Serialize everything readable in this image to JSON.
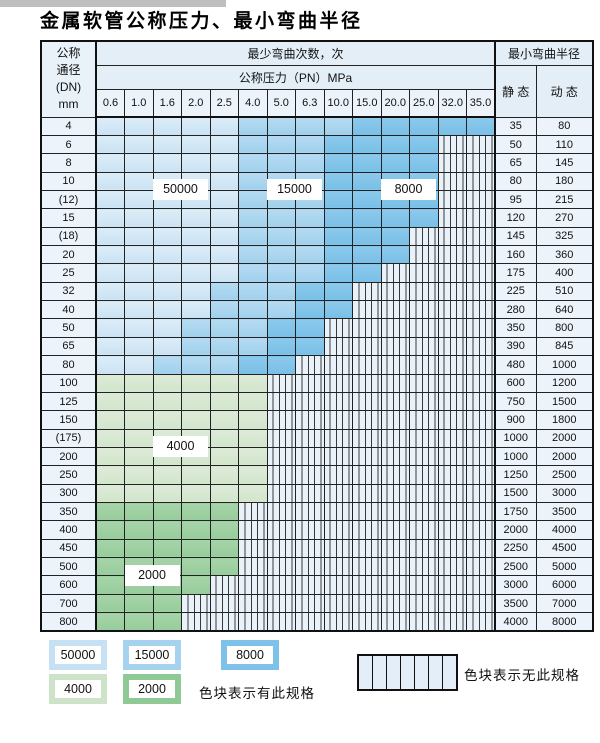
{
  "page": {
    "title": "金属软管公称压力、最小弯曲半径"
  },
  "table": {
    "corner": {
      "lines": [
        "公称",
        "通径",
        "(DN)",
        "mm"
      ]
    },
    "bend_cycles_header": "最少弯曲次数，次",
    "pressure_header": "公称压力（PN）MPa",
    "bend_radius_header": "最小弯曲半径",
    "static_header": "静 态",
    "dynamic_header": "动 态",
    "pressure_columns": [
      "0.6",
      "1.0",
      "1.6",
      "2.0",
      "2.5",
      "4.0",
      "5.0",
      "6.3",
      "10.0",
      "15.0",
      "20.0",
      "25.0",
      "32.0",
      "35.0"
    ],
    "rows": [
      {
        "dn": "4",
        "static": "35",
        "dynamic": "80",
        "colored_cols": 14,
        "shade": "blue",
        "light_end": 4,
        "med_end": 8
      },
      {
        "dn": "6",
        "static": "50",
        "dynamic": "110",
        "colored_cols": 12,
        "shade": "blue",
        "light_end": 4,
        "med_end": 7
      },
      {
        "dn": "8",
        "static": "65",
        "dynamic": "145",
        "colored_cols": 12,
        "shade": "blue",
        "light_end": 4,
        "med_end": 7
      },
      {
        "dn": "10",
        "static": "80",
        "dynamic": "180",
        "colored_cols": 12,
        "shade": "blue",
        "light_end": 4,
        "med_end": 7
      },
      {
        "dn": "(12)",
        "static": "95",
        "dynamic": "215",
        "colored_cols": 12,
        "shade": "blue",
        "light_end": 4,
        "med_end": 7
      },
      {
        "dn": "15",
        "static": "120",
        "dynamic": "270",
        "colored_cols": 12,
        "shade": "blue",
        "light_end": 4,
        "med_end": 7
      },
      {
        "dn": "(18)",
        "static": "145",
        "dynamic": "325",
        "colored_cols": 11,
        "shade": "blue",
        "light_end": 4,
        "med_end": 7
      },
      {
        "dn": "20",
        "static": "160",
        "dynamic": "360",
        "colored_cols": 11,
        "shade": "blue",
        "light_end": 4,
        "med_end": 7
      },
      {
        "dn": "25",
        "static": "175",
        "dynamic": "400",
        "colored_cols": 10,
        "shade": "blue",
        "light_end": 4,
        "med_end": 7
      },
      {
        "dn": "32",
        "static": "225",
        "dynamic": "510",
        "colored_cols": 9,
        "shade": "blue",
        "light_end": 3,
        "med_end": 6
      },
      {
        "dn": "40",
        "static": "280",
        "dynamic": "640",
        "colored_cols": 9,
        "shade": "blue",
        "light_end": 3,
        "med_end": 6
      },
      {
        "dn": "50",
        "static": "350",
        "dynamic": "800",
        "colored_cols": 8,
        "shade": "blue",
        "light_end": 2,
        "med_end": 5
      },
      {
        "dn": "65",
        "static": "390",
        "dynamic": "845",
        "colored_cols": 8,
        "shade": "blue",
        "light_end": 2,
        "med_end": 5
      },
      {
        "dn": "80",
        "static": "480",
        "dynamic": "1000",
        "colored_cols": 7,
        "shade": "blue",
        "light_end": 1,
        "med_end": 4
      },
      {
        "dn": "100",
        "static": "600",
        "dynamic": "1200",
        "colored_cols": 6,
        "shade": "green-4000"
      },
      {
        "dn": "125",
        "static": "750",
        "dynamic": "1500",
        "colored_cols": 6,
        "shade": "green-4000"
      },
      {
        "dn": "150",
        "static": "900",
        "dynamic": "1800",
        "colored_cols": 6,
        "shade": "green-4000"
      },
      {
        "dn": "(175)",
        "static": "1000",
        "dynamic": "2000",
        "colored_cols": 6,
        "shade": "green-4000"
      },
      {
        "dn": "200",
        "static": "1000",
        "dynamic": "2000",
        "colored_cols": 6,
        "shade": "green-4000"
      },
      {
        "dn": "250",
        "static": "1250",
        "dynamic": "2500",
        "colored_cols": 6,
        "shade": "green-4000"
      },
      {
        "dn": "300",
        "static": "1500",
        "dynamic": "3000",
        "colored_cols": 6,
        "shade": "green-4000"
      },
      {
        "dn": "350",
        "static": "1750",
        "dynamic": "3500",
        "colored_cols": 5,
        "shade": "green-2000"
      },
      {
        "dn": "400",
        "static": "2000",
        "dynamic": "4000",
        "colored_cols": 5,
        "shade": "green-2000"
      },
      {
        "dn": "450",
        "static": "2250",
        "dynamic": "4500",
        "colored_cols": 5,
        "shade": "green-2000"
      },
      {
        "dn": "500",
        "static": "2500",
        "dynamic": "5000",
        "colored_cols": 5,
        "shade": "green-2000"
      },
      {
        "dn": "600",
        "static": "3000",
        "dynamic": "6000",
        "colored_cols": 4,
        "shade": "green-2000"
      },
      {
        "dn": "700",
        "static": "3500",
        "dynamic": "7000",
        "colored_cols": 3,
        "shade": "green-2000"
      },
      {
        "dn": "800",
        "static": "4000",
        "dynamic": "8000",
        "colored_cols": 3,
        "shade": "green-2000"
      }
    ]
  },
  "overlays": [
    {
      "text": "50000",
      "col_start": 2,
      "col_end": 3,
      "row_boundary": 4
    },
    {
      "text": "15000",
      "col_start": 6,
      "col_end": 7,
      "row_boundary": 4
    },
    {
      "text": "8000",
      "col_start": 10,
      "col_end": 11,
      "row_boundary": 4
    },
    {
      "text": "4000",
      "col_start": 2,
      "col_end": 3,
      "row_boundary": 18
    },
    {
      "text": "2000",
      "col_start": 1,
      "col_end": 2,
      "row_boundary": 25
    }
  ],
  "legend": {
    "swatches": [
      {
        "label": "50000",
        "color": "#c7e1f4",
        "meaning": "blue-lightest"
      },
      {
        "label": "15000",
        "color": "#a5d2ee",
        "meaning": "blue-medium"
      },
      {
        "label": "8000",
        "color": "#7fc2e9",
        "meaning": "blue-dark"
      },
      {
        "label": "4000",
        "color": "#cde4c9",
        "meaning": "green-light"
      },
      {
        "label": "2000",
        "color": "#8fca96",
        "meaning": "green-medium"
      }
    ],
    "available_text": "色块表示有此规格",
    "unavailable_text": "色块表示无此规格"
  },
  "colors": {
    "cycle_50000": "#d3e6f5",
    "cycle_15000": "#abd6f0",
    "cycle_8000": "#84c5ea",
    "cycle_4000": "#d9e9d4",
    "cycle_2000": "#9ed0a2",
    "no_spec_bg": "#eaf2f9",
    "header_bg": "#e4eef7",
    "grid_line": "#222222"
  }
}
